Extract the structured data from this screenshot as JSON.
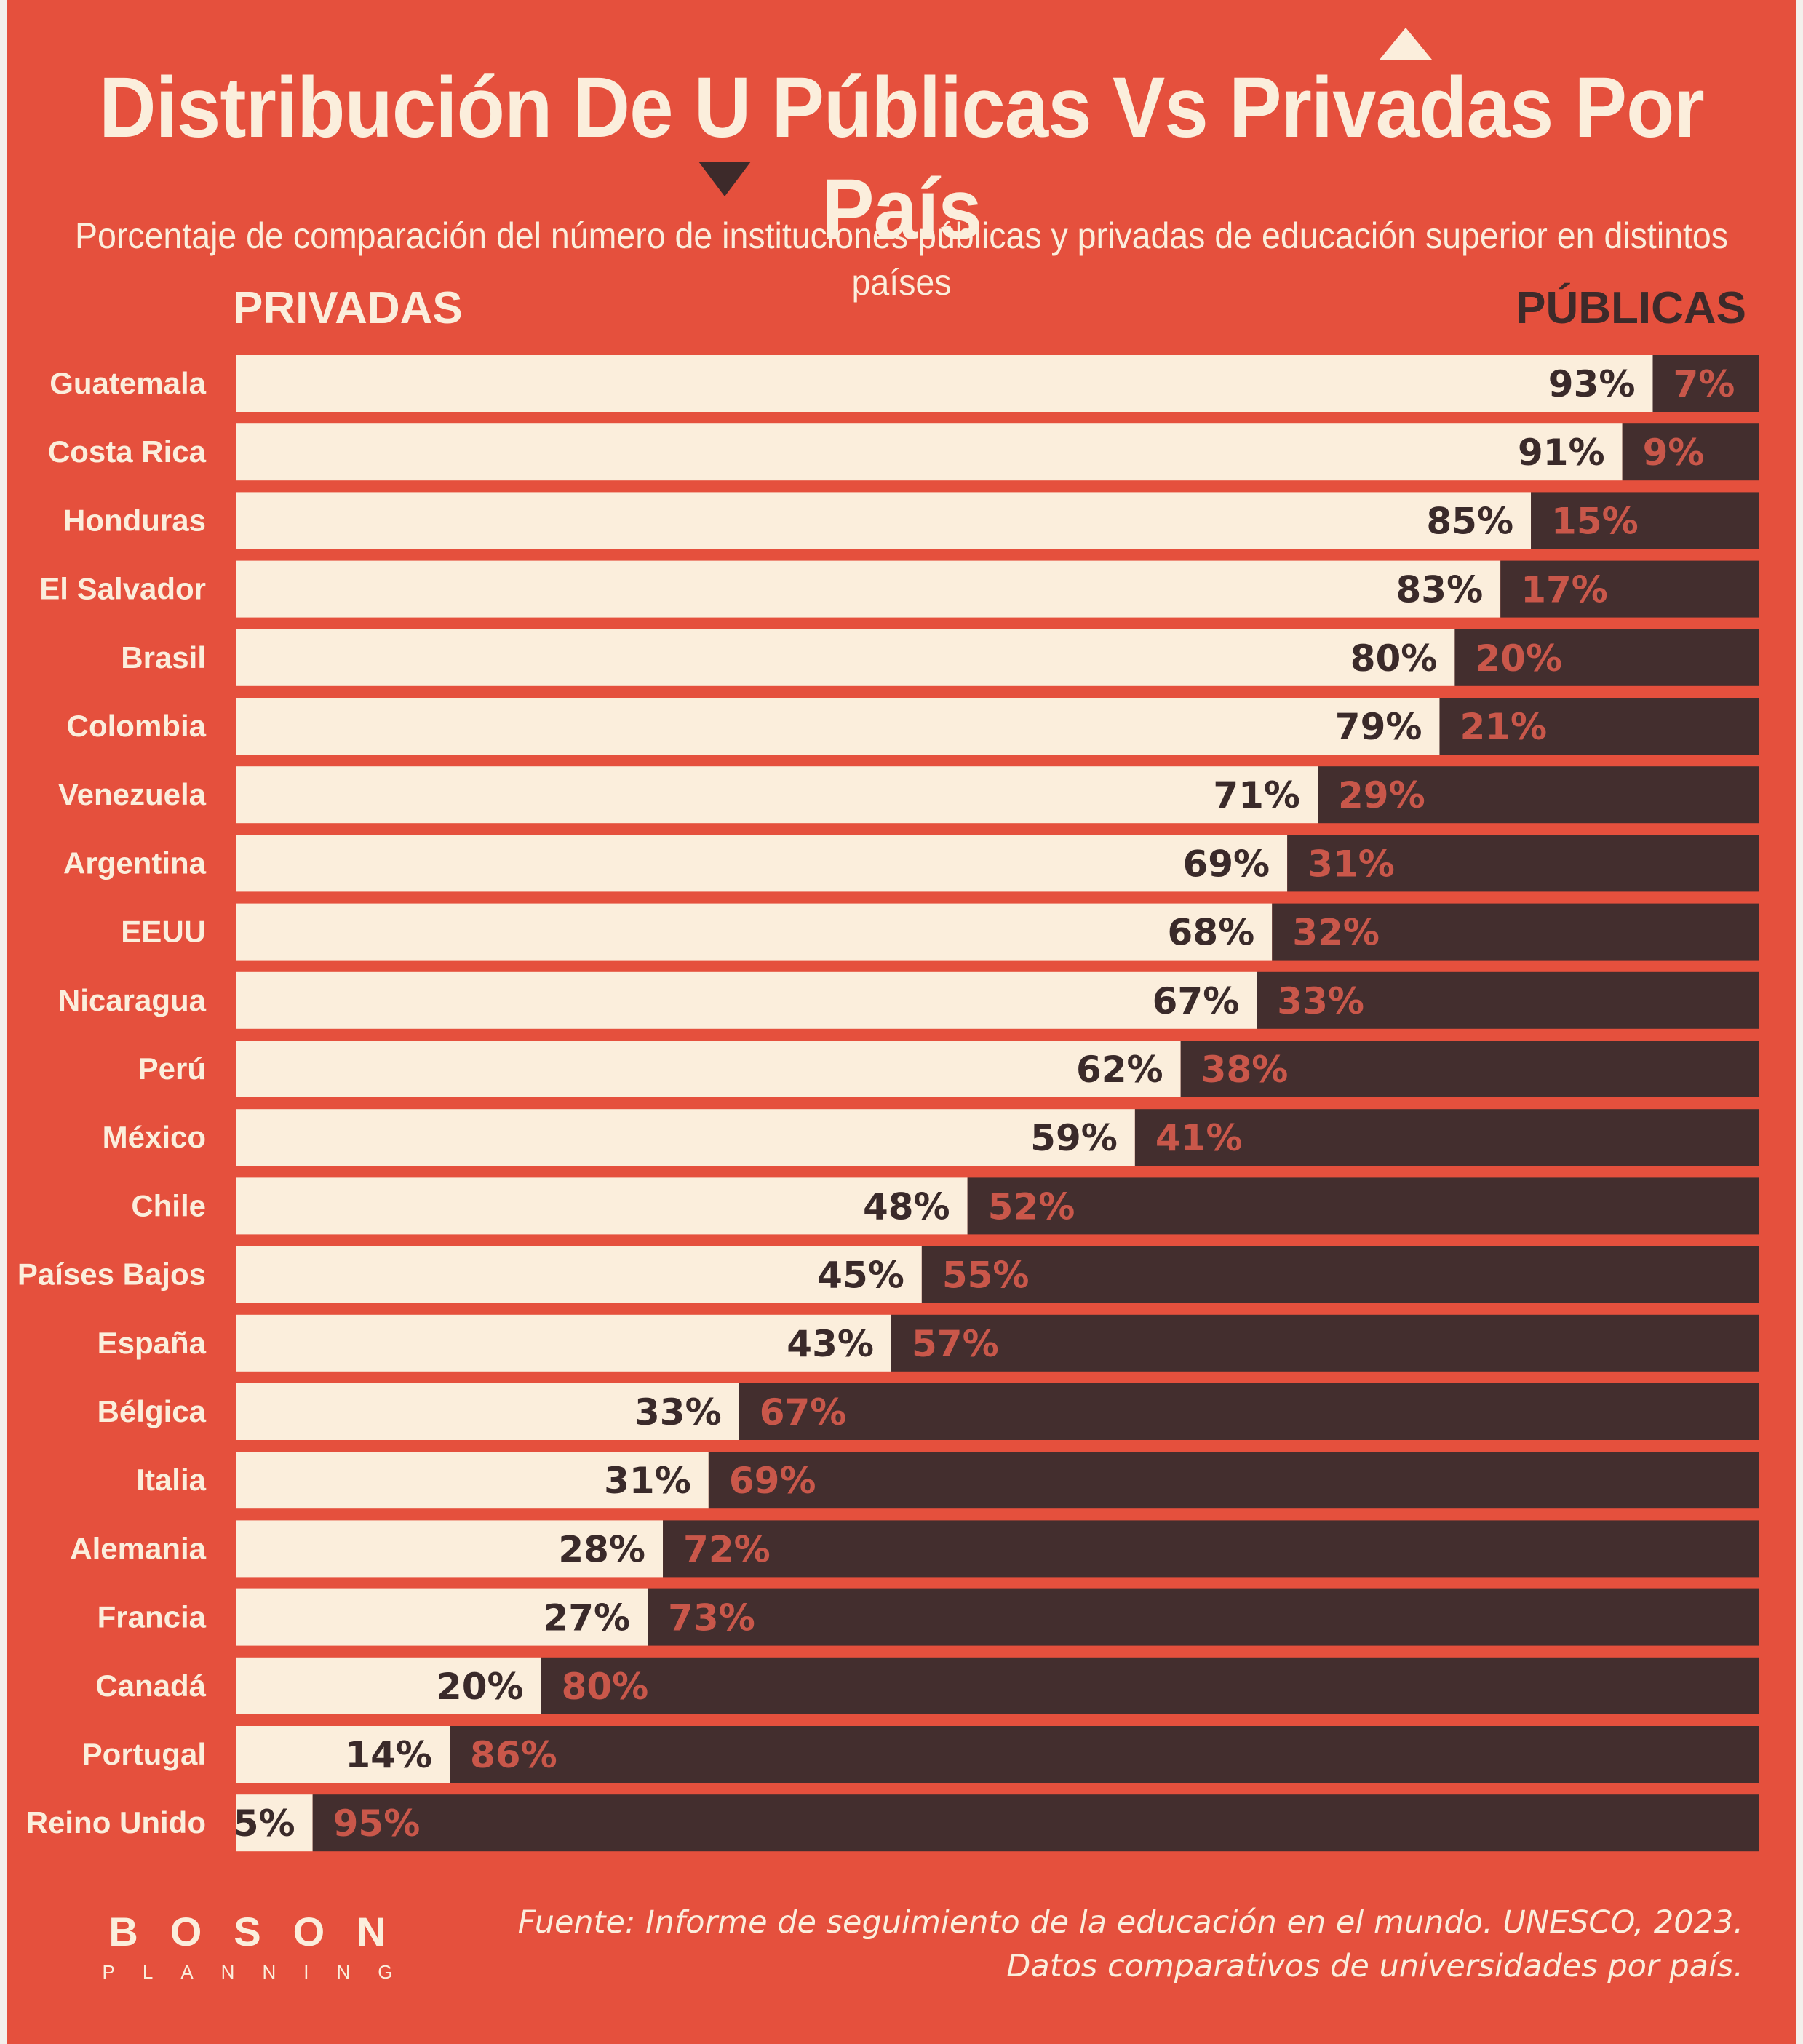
{
  "title": "Distribución De U Públicas Vs Privadas Por País",
  "subtitle": "Porcentaje de comparación del número de instituciones públicas y privadas de educación superior en distintos países",
  "legend": {
    "left_label": "PRIVADAS",
    "right_label": "PÚBLICAS"
  },
  "chart_data": {
    "type": "bar",
    "orientation": "horizontal",
    "stacked": true,
    "percent_stacked": true,
    "categories": [
      "Guatemala",
      "Costa Rica",
      "Honduras",
      "El Salvador",
      "Brasil",
      "Colombia",
      "Venezuela",
      "Argentina",
      "EEUU",
      "Nicaragua",
      "Perú",
      "México",
      "Chile",
      "Países Bajos",
      "España",
      "Bélgica",
      "Italia",
      "Alemania",
      "Francia",
      "Canadá",
      "Portugal",
      "Reino Unido"
    ],
    "series": [
      {
        "name": "PRIVADAS",
        "color": "#fbeedc",
        "values": [
          93,
          91,
          85,
          83,
          80,
          79,
          71,
          69,
          68,
          67,
          62,
          59,
          48,
          45,
          43,
          33,
          31,
          28,
          27,
          20,
          14,
          5
        ]
      },
      {
        "name": "PÚBLICAS",
        "color": "#432e2e",
        "values": [
          7,
          9,
          15,
          17,
          20,
          21,
          29,
          31,
          32,
          33,
          38,
          41,
          52,
          55,
          57,
          67,
          69,
          72,
          73,
          80,
          86,
          95
        ]
      }
    ],
    "value_format": "{v}%",
    "xlim": [
      0,
      100
    ]
  },
  "brand": {
    "name": "BOSON",
    "tagline": "PLANNING"
  },
  "source": "Fuente: Informe de seguimiento de la educación en el mundo. UNESCO, 2023. Datos comparativos de universidades por país.",
  "colors": {
    "background": "#e5503d",
    "private_bar": "#fbeedc",
    "public_bar": "#432e2e",
    "public_value_text": "#c9574a",
    "private_value_text": "#3a2a2a"
  }
}
